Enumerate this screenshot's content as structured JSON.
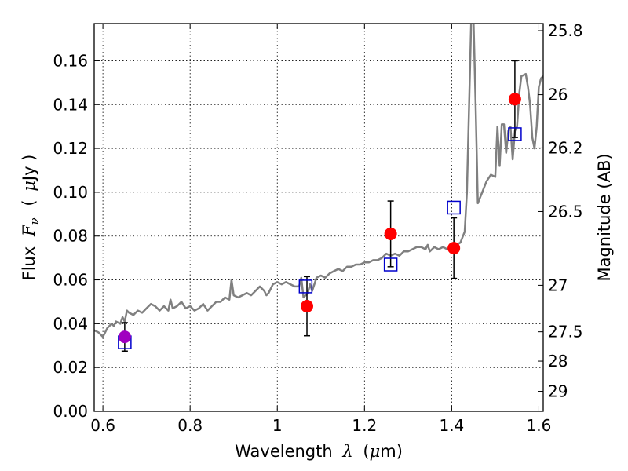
{
  "chart_data": {
    "type": "scatter",
    "title": "",
    "xlabel": "Wavelength",
    "xlabel_symbol": "λ",
    "xlabel_unit_open": "(",
    "xlabel_unit_symbol": "μ",
    "xlabel_unit_rest": "m)",
    "ylabel": "Flux",
    "ylabel_symbol": "F",
    "ylabel_subscript": "ν",
    "ylabel_unit_open": "(",
    "ylabel_unit_symbol": "μ",
    "ylabel_unit_rest": "Jy )",
    "y2label": "Magnitude (AB)",
    "xlim": [
      0.58,
      1.61
    ],
    "ylim": [
      0.0,
      0.177
    ],
    "x_ticks": [
      0.6,
      0.8,
      1.0,
      1.2,
      1.4,
      1.6
    ],
    "x_tick_labels": [
      "0.6",
      "0.8",
      "1",
      "1.2",
      "1.4",
      "1.6"
    ],
    "y_ticks": [
      0.0,
      0.02,
      0.04,
      0.06,
      0.08,
      0.1,
      0.12,
      0.14,
      0.16
    ],
    "y_tick_labels": [
      "0.00",
      "0.02",
      "0.04",
      "0.06",
      "0.08",
      "0.10",
      "0.12",
      "0.14",
      "0.16"
    ],
    "y2_ticks": [
      {
        "label": "25.8",
        "mag": 25.8
      },
      {
        "label": "26",
        "mag": 26.0
      },
      {
        "label": "26.2",
        "mag": 26.2
      },
      {
        "label": "26.5",
        "mag": 26.5
      },
      {
        "label": "27",
        "mag": 27.0
      },
      {
        "label": "27.5",
        "mag": 27.5
      },
      {
        "label": "28",
        "mag": 28.0
      },
      {
        "label": "29",
        "mag": 29.0
      }
    ],
    "grid": true,
    "colors": {
      "spectrum": "#808080",
      "observed": "#ff0000",
      "observed_blend": "#a000c0",
      "model": "#0000cc",
      "errorbar": "#000000"
    },
    "observed_points": [
      {
        "x": 0.65,
        "y": 0.034,
        "err": 0.0065
      },
      {
        "x": 1.068,
        "y": 0.048,
        "err": 0.0135
      },
      {
        "x": 1.26,
        "y": 0.081,
        "err": 0.015
      },
      {
        "x": 1.405,
        "y": 0.0745,
        "err": 0.0138
      },
      {
        "x": 1.545,
        "y": 0.1425,
        "err": 0.0175
      }
    ],
    "model_points": [
      {
        "x": 0.65,
        "y": 0.0315
      },
      {
        "x": 1.065,
        "y": 0.057
      },
      {
        "x": 1.26,
        "y": 0.067
      },
      {
        "x": 1.405,
        "y": 0.093
      },
      {
        "x": 1.545,
        "y": 0.1265
      }
    ],
    "spectrum": [
      [
        0.58,
        0.037
      ],
      [
        0.59,
        0.036
      ],
      [
        0.6,
        0.034
      ],
      [
        0.605,
        0.036
      ],
      [
        0.61,
        0.038
      ],
      [
        0.62,
        0.04
      ],
      [
        0.625,
        0.039
      ],
      [
        0.63,
        0.041
      ],
      [
        0.64,
        0.04
      ],
      [
        0.645,
        0.043
      ],
      [
        0.65,
        0.041
      ],
      [
        0.655,
        0.046
      ],
      [
        0.66,
        0.045
      ],
      [
        0.67,
        0.044
      ],
      [
        0.68,
        0.046
      ],
      [
        0.69,
        0.045
      ],
      [
        0.7,
        0.047
      ],
      [
        0.71,
        0.049
      ],
      [
        0.72,
        0.048
      ],
      [
        0.73,
        0.046
      ],
      [
        0.74,
        0.048
      ],
      [
        0.75,
        0.046
      ],
      [
        0.755,
        0.051
      ],
      [
        0.76,
        0.047
      ],
      [
        0.77,
        0.048
      ],
      [
        0.78,
        0.05
      ],
      [
        0.79,
        0.047
      ],
      [
        0.8,
        0.048
      ],
      [
        0.81,
        0.046
      ],
      [
        0.82,
        0.047
      ],
      [
        0.83,
        0.049
      ],
      [
        0.84,
        0.046
      ],
      [
        0.85,
        0.048
      ],
      [
        0.86,
        0.05
      ],
      [
        0.87,
        0.05
      ],
      [
        0.88,
        0.052
      ],
      [
        0.89,
        0.051
      ],
      [
        0.895,
        0.06
      ],
      [
        0.9,
        0.053
      ],
      [
        0.91,
        0.052
      ],
      [
        0.92,
        0.053
      ],
      [
        0.93,
        0.054
      ],
      [
        0.94,
        0.053
      ],
      [
        0.95,
        0.055
      ],
      [
        0.96,
        0.057
      ],
      [
        0.97,
        0.055
      ],
      [
        0.975,
        0.053
      ],
      [
        0.98,
        0.054
      ],
      [
        0.99,
        0.058
      ],
      [
        1.0,
        0.059
      ],
      [
        1.01,
        0.058
      ],
      [
        1.02,
        0.059
      ],
      [
        1.03,
        0.058
      ],
      [
        1.04,
        0.057
      ],
      [
        1.05,
        0.057
      ],
      [
        1.055,
        0.061
      ],
      [
        1.06,
        0.052
      ],
      [
        1.07,
        0.054
      ],
      [
        1.075,
        0.058
      ],
      [
        1.08,
        0.055
      ],
      [
        1.09,
        0.061
      ],
      [
        1.1,
        0.062
      ],
      [
        1.11,
        0.061
      ],
      [
        1.12,
        0.063
      ],
      [
        1.13,
        0.064
      ],
      [
        1.14,
        0.065
      ],
      [
        1.15,
        0.064
      ],
      [
        1.16,
        0.066
      ],
      [
        1.17,
        0.066
      ],
      [
        1.18,
        0.067
      ],
      [
        1.19,
        0.067
      ],
      [
        1.2,
        0.068
      ],
      [
        1.21,
        0.068
      ],
      [
        1.22,
        0.069
      ],
      [
        1.23,
        0.069
      ],
      [
        1.24,
        0.07
      ],
      [
        1.25,
        0.072
      ],
      [
        1.26,
        0.071
      ],
      [
        1.27,
        0.072
      ],
      [
        1.28,
        0.071
      ],
      [
        1.29,
        0.073
      ],
      [
        1.3,
        0.073
      ],
      [
        1.31,
        0.074
      ],
      [
        1.32,
        0.075
      ],
      [
        1.33,
        0.075
      ],
      [
        1.34,
        0.074
      ],
      [
        1.345,
        0.076
      ],
      [
        1.35,
        0.073
      ],
      [
        1.36,
        0.075
      ],
      [
        1.37,
        0.074
      ],
      [
        1.38,
        0.075
      ],
      [
        1.39,
        0.074
      ],
      [
        1.4,
        0.076
      ],
      [
        1.41,
        0.076
      ],
      [
        1.42,
        0.077
      ],
      [
        1.43,
        0.082
      ],
      [
        1.435,
        0.1
      ],
      [
        1.44,
        0.14
      ],
      [
        1.445,
        0.18
      ],
      [
        1.45,
        0.18
      ],
      [
        1.455,
        0.14
      ],
      [
        1.46,
        0.095
      ],
      [
        1.47,
        0.1
      ],
      [
        1.48,
        0.105
      ],
      [
        1.49,
        0.108
      ],
      [
        1.5,
        0.107
      ],
      [
        1.505,
        0.13
      ],
      [
        1.51,
        0.112
      ],
      [
        1.515,
        0.131
      ],
      [
        1.52,
        0.131
      ],
      [
        1.525,
        0.118
      ],
      [
        1.53,
        0.128
      ],
      [
        1.535,
        0.13
      ],
      [
        1.54,
        0.115
      ],
      [
        1.545,
        0.128
      ],
      [
        1.55,
        0.13
      ],
      [
        1.555,
        0.145
      ],
      [
        1.56,
        0.153
      ],
      [
        1.57,
        0.154
      ],
      [
        1.575,
        0.148
      ],
      [
        1.58,
        0.14
      ],
      [
        1.585,
        0.125
      ],
      [
        1.59,
        0.12
      ],
      [
        1.595,
        0.13
      ],
      [
        1.6,
        0.148
      ],
      [
        1.605,
        0.152
      ],
      [
        1.61,
        0.153
      ]
    ]
  }
}
